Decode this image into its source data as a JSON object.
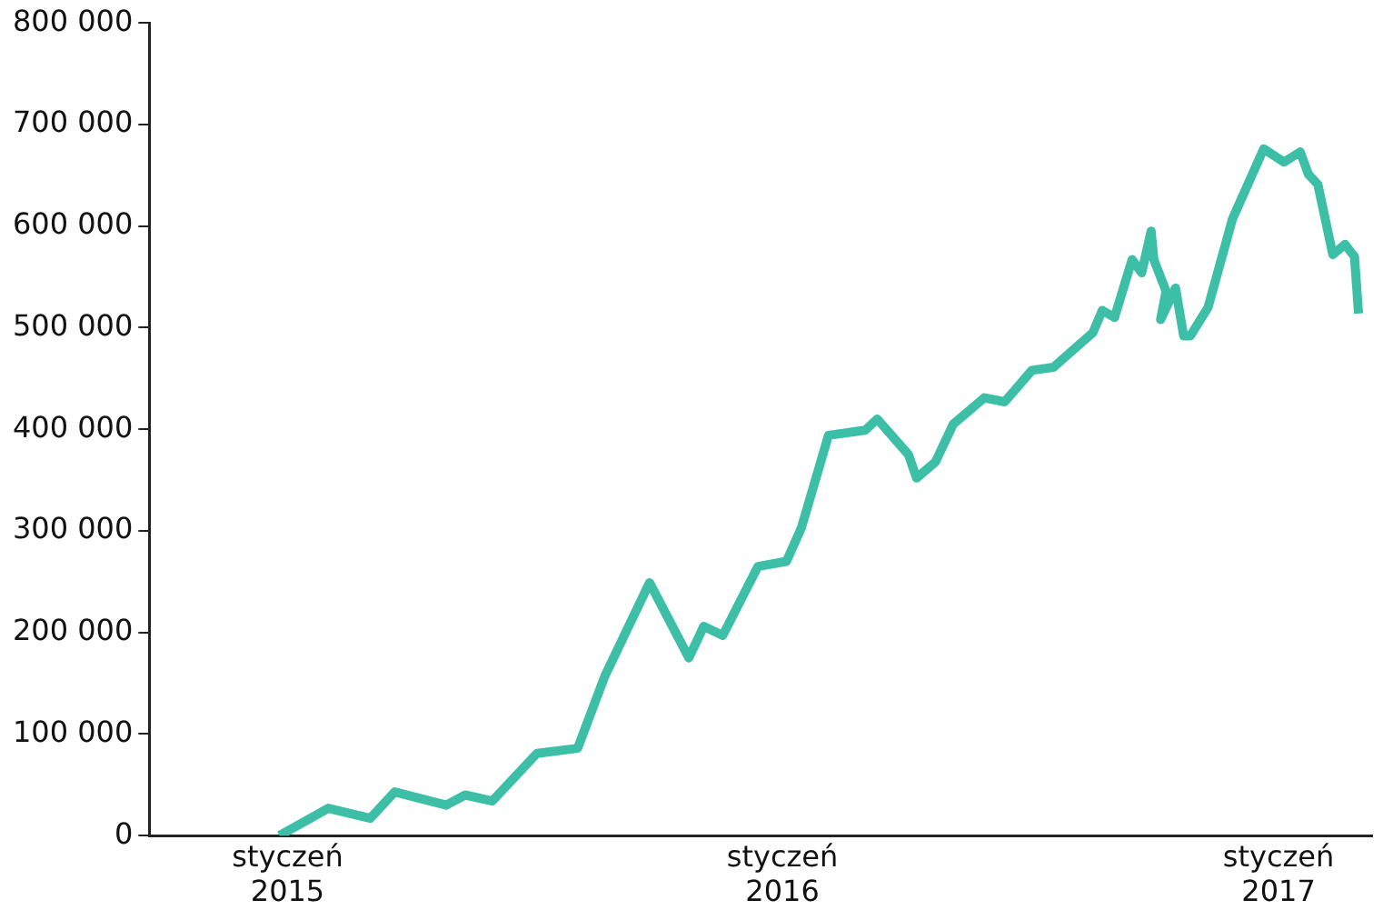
{
  "chart_data": {
    "type": "line",
    "x": [
      "2014-12-26",
      "2015-01-31",
      "2015-03-03",
      "2015-03-21",
      "2015-04-28",
      "2015-05-12",
      "2015-06-01",
      "2015-07-04",
      "2015-08-03",
      "2015-08-23",
      "2015-09-25",
      "2015-10-24",
      "2015-11-04",
      "2015-11-18",
      "2015-12-14",
      "2016-01-04",
      "2016-01-15",
      "2016-02-04",
      "2016-03-02",
      "2016-03-11",
      "2016-04-03",
      "2016-04-09",
      "2016-04-23",
      "2016-05-06",
      "2016-05-29",
      "2016-06-13",
      "2016-07-03",
      "2016-07-19",
      "2016-07-30",
      "2016-08-17",
      "2016-08-24",
      "2016-09-02",
      "2016-09-15",
      "2016-09-22",
      "2016-09-29",
      "2016-10-01",
      "2016-10-10",
      "2016-10-06",
      "2016-10-17",
      "2016-10-23",
      "2016-10-28",
      "2016-11-10",
      "2016-11-28",
      "2016-12-21",
      "2017-01-05",
      "2017-01-17",
      "2017-01-23",
      "2017-01-30",
      "2017-02-10",
      "2017-02-19",
      "2017-02-26",
      "2017-03-01"
    ],
    "series": [
      {
        "color": "#3dbfa7",
        "values": [
          0,
          27000,
          17000,
          43000,
          30000,
          40000,
          34000,
          81000,
          86000,
          157000,
          249000,
          175000,
          206000,
          197000,
          265000,
          270000,
          303000,
          394000,
          399000,
          410000,
          375000,
          352000,
          368000,
          405000,
          431000,
          427000,
          458000,
          461000,
          474000,
          495000,
          517000,
          510000,
          567000,
          554000,
          595000,
          567000,
          536000,
          508000,
          539000,
          492000,
          492000,
          520000,
          607000,
          676000,
          663000,
          673000,
          651000,
          641000,
          572000,
          582000,
          570000,
          514000
        ]
      }
    ],
    "xlim": [
      "2014-09-21",
      "2017-03-11"
    ],
    "xticks": [
      {
        "value": "2015-01",
        "label": "styczeń 2015"
      },
      {
        "value": "2016-01",
        "label": "styczeń 2016"
      },
      {
        "value": "2017-01",
        "label": "styczeń 2017"
      }
    ],
    "ylim": [
      0,
      800000
    ],
    "yticks": [
      {
        "value": 0,
        "label": "0"
      },
      {
        "value": 100000,
        "label": "100 000"
      },
      {
        "value": 200000,
        "label": "200 000"
      },
      {
        "value": 300000,
        "label": "300 000"
      },
      {
        "value": 400000,
        "label": "400 000"
      },
      {
        "value": 500000,
        "label": "500 000"
      },
      {
        "value": 600000,
        "label": "600 000"
      },
      {
        "value": 700000,
        "label": "700 000"
      },
      {
        "value": 800000,
        "label": "800 000"
      }
    ],
    "marker": "none",
    "line_style": "solid",
    "legend": false
  }
}
